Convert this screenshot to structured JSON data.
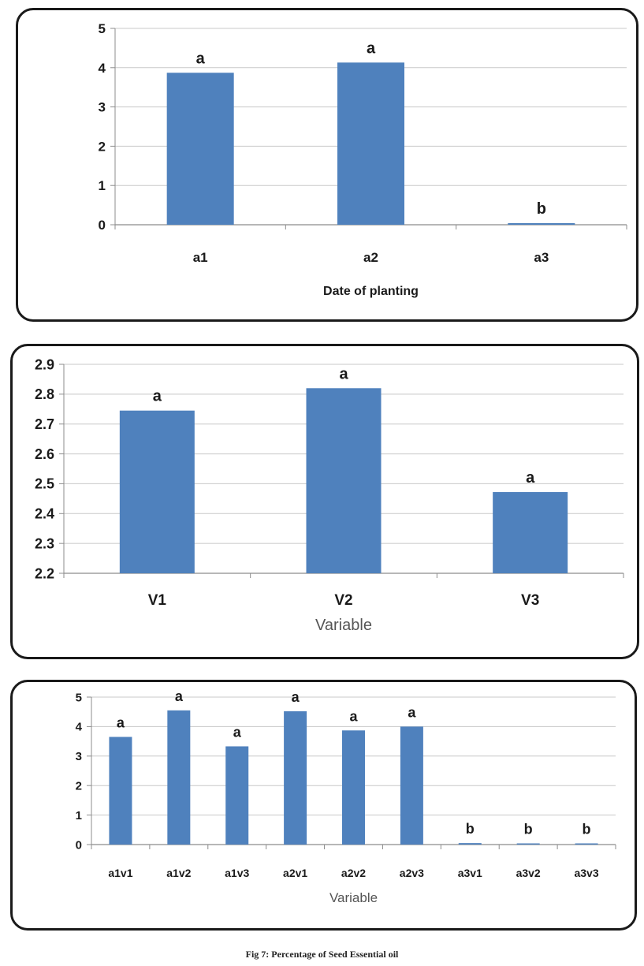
{
  "caption": "Fig 7: Percentage of Seed Essential oil",
  "chart_data": [
    {
      "type": "bar",
      "categories": [
        "a1",
        "a2",
        "a3"
      ],
      "values": [
        3.87,
        4.13,
        0.04
      ],
      "labels": [
        "a",
        "a",
        "b"
      ],
      "xlabel": "Date of planting",
      "ylabel": "",
      "ylim": [
        0,
        5
      ],
      "yticks": [
        "0",
        "1",
        "2",
        "3",
        "4",
        "5"
      ],
      "grid": true,
      "color": "#4f81bd"
    },
    {
      "type": "bar",
      "categories": [
        "V1",
        "V2",
        "V3"
      ],
      "values": [
        2.745,
        2.82,
        2.472
      ],
      "labels": [
        "a",
        "a",
        "a"
      ],
      "xlabel": "Variable",
      "ylabel": "",
      "ylim": [
        2.2,
        2.9
      ],
      "yticks": [
        "2.2",
        "2.3",
        "2.4",
        "2.5",
        "2.6",
        "2.7",
        "2.8",
        "2.9"
      ],
      "grid": true,
      "color": "#4f81bd"
    },
    {
      "type": "bar",
      "categories": [
        "a1v1",
        "a1v2",
        "a1v3",
        "a2v1",
        "a2v2",
        "a2v3",
        "a3v1",
        "a3v2",
        "a3v3"
      ],
      "values": [
        3.65,
        4.55,
        3.33,
        4.52,
        3.87,
        4.0,
        0.05,
        0.03,
        0.03
      ],
      "labels": [
        "a",
        "a",
        "a",
        "a",
        "a",
        "a",
        "b",
        "b",
        "b"
      ],
      "xlabel": "Variable",
      "ylabel": "",
      "ylim": [
        0,
        5
      ],
      "yticks": [
        "0",
        "1",
        "2",
        "3",
        "4",
        "5"
      ],
      "grid": true,
      "color": "#4f81bd"
    }
  ]
}
